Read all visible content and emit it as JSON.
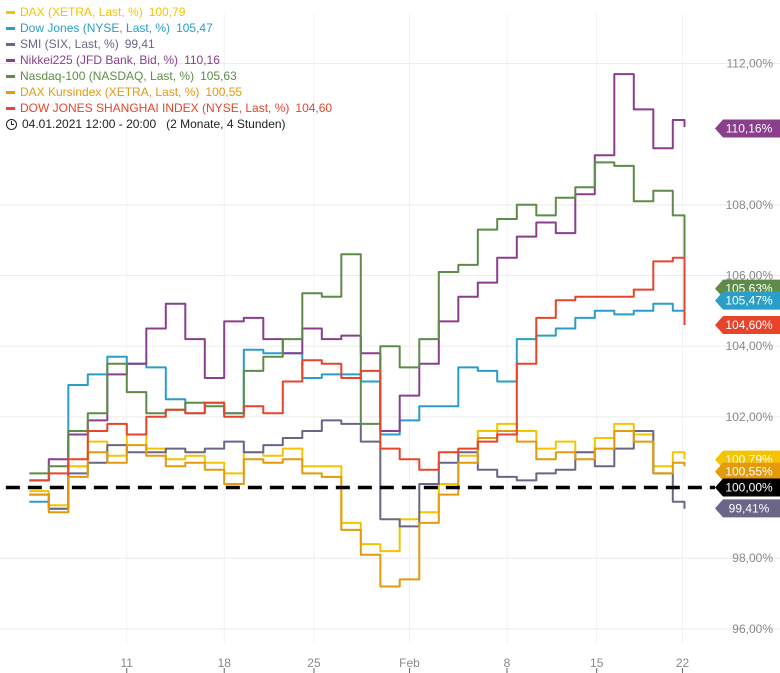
{
  "legend": [
    {
      "label": "DAX (XETRA, Last, %)",
      "value": "100,79",
      "color": "#f5c400"
    },
    {
      "label": "Dow Jones (NYSE, Last, %)",
      "value": "105,47",
      "color": "#2a9ec8"
    },
    {
      "label": "SMI (SIX, Last, %)",
      "value": "99,41",
      "color": "#6b6587"
    },
    {
      "label": "Nikkei225 (JFD Bank, Bid, %)",
      "value": "110,16",
      "color": "#8a3f8d"
    },
    {
      "label": "Nasdaq-100 (NASDAQ, Last, %)",
      "value": "105,63",
      "color": "#5e8c48"
    },
    {
      "label": "DAX Kursindex (XETRA, Last, %)",
      "value": "100,55",
      "color": "#e39a0d"
    },
    {
      "label": "DOW JONES SHANGHAI INDEX (NYSE, Last, %)",
      "value": "104,60",
      "color": "#e8432b"
    }
  ],
  "period": {
    "icon": "clock-icon",
    "range": "04.01.2021 12:00 - 20:00",
    "duration": "(2 Monate, 4 Stunden)"
  },
  "chart_data": {
    "type": "line",
    "x_unit": "trading day (04.01.2021 = 0)",
    "x_ticks": [
      {
        "x": 5,
        "label": "11"
      },
      {
        "x": 10,
        "label": "18"
      },
      {
        "x": 14.6,
        "label": "25"
      },
      {
        "x": 19.5,
        "label": "Feb"
      },
      {
        "x": 24.5,
        "label": "8"
      },
      {
        "x": 29.1,
        "label": "15"
      },
      {
        "x": 33.5,
        "label": "22"
      }
    ],
    "xlim": [
      -1.5,
      38.5
    ],
    "ylim": [
      95.6,
      113.4
    ],
    "y_ticks": [
      {
        "v": 96,
        "label": "96,00%"
      },
      {
        "v": 98,
        "label": "98,00%"
      },
      {
        "v": 102,
        "label": "102,00%"
      },
      {
        "v": 104,
        "label": "104,00%"
      },
      {
        "v": 106,
        "label": "106,00%"
      },
      {
        "v": 108,
        "label": "108,00%"
      },
      {
        "v": 112,
        "label": "112,00%"
      }
    ],
    "grid": true,
    "baseline": {
      "value": 100,
      "label": "100,00%",
      "color": "#000000"
    },
    "series": [
      {
        "name": "DAX (XETRA, Last, %)",
        "color": "#f5c400",
        "tag": "100,79%",
        "x": [
          0,
          1,
          2,
          3,
          4,
          5,
          6,
          7,
          8,
          9,
          10,
          11,
          12,
          13,
          14,
          15,
          16,
          17,
          18,
          19,
          20,
          21,
          22,
          23,
          24,
          25,
          26,
          27,
          28,
          29,
          30,
          31,
          32,
          33,
          33.6
        ],
        "y": [
          99.9,
          99.5,
          100.6,
          101.3,
          100.9,
          101.5,
          101.1,
          100.8,
          100.9,
          100.7,
          100.4,
          101.0,
          100.9,
          101.1,
          100.6,
          100.6,
          99.0,
          98.4,
          98.2,
          99.1,
          99.3,
          100.1,
          100.9,
          101.6,
          101.8,
          101.6,
          101.1,
          101.3,
          101.0,
          101.4,
          101.8,
          101.5,
          100.6,
          101.0,
          100.8
        ]
      },
      {
        "name": "Dow Jones (NYSE, Last, %)",
        "color": "#2a9ec8",
        "tag": "105,47%",
        "x": [
          0,
          1,
          2,
          3,
          4,
          5,
          6,
          7,
          8,
          9,
          10,
          11,
          12,
          13,
          14,
          15,
          16,
          17,
          18,
          19,
          20,
          21,
          22,
          23,
          24,
          25,
          26,
          27,
          28,
          29,
          30,
          31,
          32,
          33,
          33.6
        ],
        "y": [
          99.6,
          99.4,
          102.9,
          103.2,
          103.7,
          103.5,
          103.4,
          102.5,
          102.1,
          102.4,
          102.1,
          103.9,
          103.8,
          103.8,
          103.1,
          103.2,
          103.2,
          103.0,
          101.5,
          101.9,
          102.3,
          102.3,
          103.4,
          103.3,
          103.0,
          104.2,
          104.3,
          104.5,
          104.8,
          105.0,
          104.9,
          105.0,
          105.2,
          105.0,
          105.5
        ]
      },
      {
        "name": "SMI (SIX, Last, %)",
        "color": "#6b6587",
        "tag": "99,41%",
        "x": [
          0,
          1,
          2,
          3,
          4,
          5,
          6,
          7,
          8,
          9,
          10,
          11,
          12,
          13,
          14,
          15,
          16,
          17,
          18,
          19,
          20,
          21,
          22,
          23,
          24,
          25,
          26,
          27,
          28,
          29,
          30,
          31,
          32,
          33,
          33.6
        ],
        "y": [
          99.8,
          99.4,
          100.4,
          100.7,
          101.2,
          101.0,
          101.0,
          101.1,
          101.0,
          101.1,
          101.3,
          101.0,
          101.2,
          101.4,
          101.6,
          101.9,
          101.8,
          101.3,
          99.1,
          98.9,
          100.1,
          100.7,
          101.0,
          100.5,
          100.3,
          100.2,
          100.4,
          100.5,
          101.0,
          100.6,
          101.1,
          101.6,
          100.4,
          99.6,
          99.4
        ]
      },
      {
        "name": "Nikkei225 (JFD Bank, Bid, %)",
        "color": "#8a3f8d",
        "tag": "110,16%",
        "x": [
          0,
          1,
          2,
          3,
          4,
          5,
          6,
          7,
          8,
          9,
          10,
          11,
          12,
          13,
          14,
          15,
          16,
          17,
          18,
          19,
          20,
          21,
          22,
          23,
          24,
          25,
          26,
          27,
          28,
          29,
          30,
          31,
          32,
          33,
          33.6
        ],
        "y": [
          100.2,
          100.8,
          101.5,
          101.9,
          103.2,
          103.5,
          104.5,
          105.2,
          104.2,
          103.1,
          104.7,
          104.8,
          104.2,
          103.8,
          104.5,
          104.2,
          104.3,
          103.8,
          101.6,
          102.6,
          103.5,
          104.7,
          105.4,
          105.8,
          106.5,
          107.1,
          107.5,
          107.2,
          108.3,
          109.4,
          111.7,
          110.7,
          109.6,
          110.4,
          110.2
        ]
      },
      {
        "name": "Nasdaq-100 (NASDAQ, Last, %)",
        "color": "#5e8c48",
        "tag": "105,63%",
        "x": [
          0,
          1,
          2,
          3,
          4,
          5,
          6,
          7,
          8,
          9,
          10,
          11,
          12,
          13,
          14,
          15,
          16,
          17,
          18,
          19,
          20,
          21,
          22,
          23,
          24,
          25,
          26,
          27,
          28,
          29,
          30,
          31,
          32,
          33,
          33.6
        ],
        "y": [
          100.4,
          100.6,
          101.6,
          102.1,
          103.5,
          102.7,
          102.1,
          102.2,
          102.4,
          102.3,
          102.1,
          103.3,
          103.7,
          104.2,
          105.5,
          105.4,
          106.6,
          101.8,
          104.0,
          103.4,
          104.2,
          106.1,
          106.3,
          107.3,
          107.6,
          108.0,
          107.7,
          108.2,
          108.5,
          109.2,
          109.1,
          108.1,
          108.4,
          107.7,
          105.6
        ]
      },
      {
        "name": "DAX Kursindex (XETRA, Last, %)",
        "color": "#e39a0d",
        "tag": "100,55%",
        "x": [
          0,
          1,
          2,
          3,
          4,
          5,
          6,
          7,
          8,
          9,
          10,
          11,
          12,
          13,
          14,
          15,
          16,
          17,
          18,
          19,
          20,
          21,
          22,
          23,
          24,
          25,
          26,
          27,
          28,
          29,
          30,
          31,
          32,
          33,
          33.6
        ],
        "y": [
          99.8,
          99.3,
          100.3,
          101.0,
          100.7,
          101.2,
          100.9,
          100.6,
          100.7,
          100.5,
          100.1,
          100.8,
          100.7,
          100.8,
          100.4,
          100.3,
          98.8,
          98.1,
          97.2,
          97.4,
          99.0,
          99.8,
          100.7,
          101.4,
          101.6,
          101.3,
          100.8,
          101.0,
          100.8,
          101.1,
          101.6,
          101.3,
          100.4,
          100.7,
          100.6
        ]
      },
      {
        "name": "DOW JONES SHANGHAI INDEX (NYSE, Last, %)",
        "color": "#e8432b",
        "tag": "104,60%",
        "x": [
          0,
          1,
          2,
          3,
          4,
          5,
          6,
          7,
          8,
          9,
          10,
          11,
          12,
          13,
          14,
          15,
          16,
          17,
          18,
          19,
          20,
          21,
          22,
          23,
          24,
          25,
          26,
          27,
          28,
          29,
          30,
          31,
          32,
          33,
          33.6
        ],
        "y": [
          100.2,
          100.4,
          100.8,
          101.6,
          101.8,
          101.5,
          102.0,
          102.2,
          102.1,
          102.4,
          102.0,
          102.3,
          102.1,
          103.0,
          103.6,
          103.5,
          103.1,
          103.3,
          101.1,
          100.8,
          100.5,
          101.0,
          101.1,
          101.3,
          101.5,
          103.5,
          104.8,
          105.3,
          105.4,
          105.4,
          105.4,
          105.6,
          106.4,
          106.5,
          104.6
        ]
      }
    ]
  }
}
